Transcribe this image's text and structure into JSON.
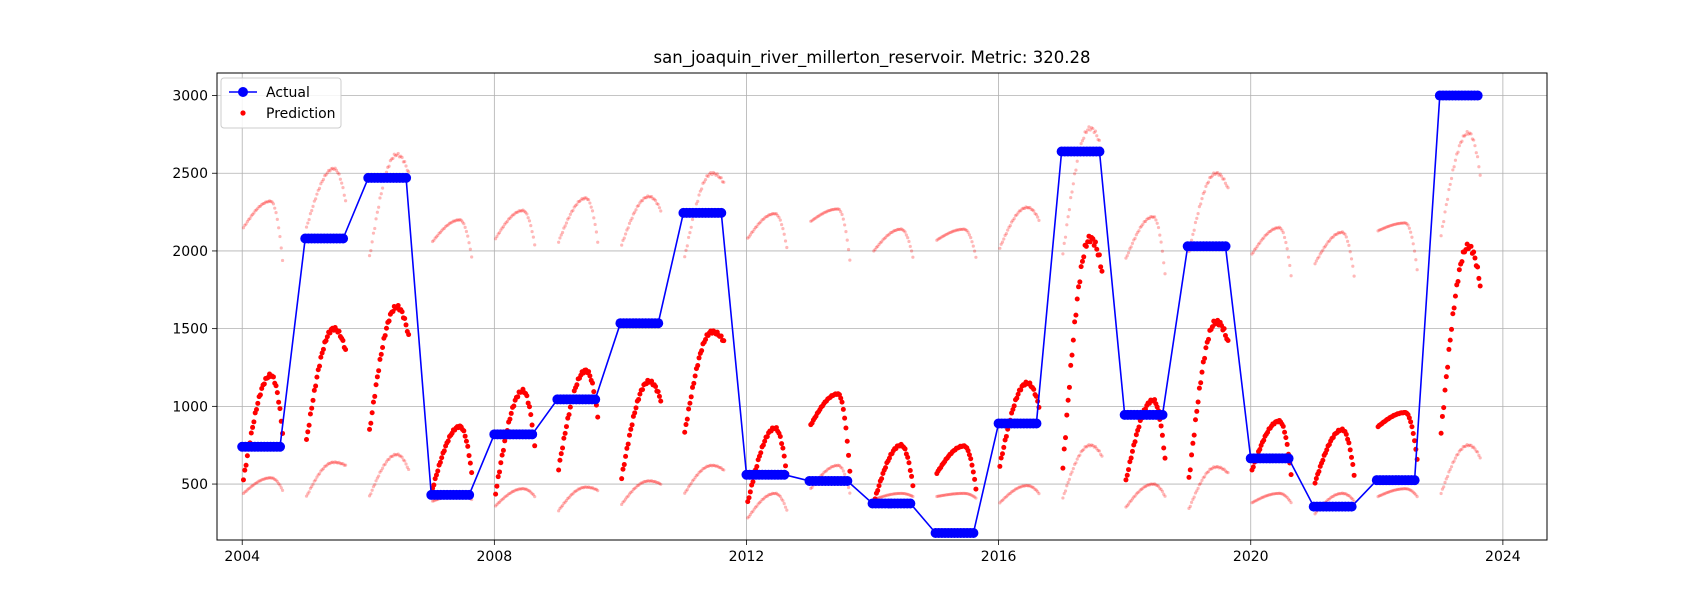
{
  "chart_data": {
    "type": "line+scatter",
    "title": "san_joaquin_river_millerton_reservoir. Metric: 320.28",
    "xlabel": "",
    "ylabel": "",
    "xlim": [
      2003.6,
      2024.7
    ],
    "ylim": [
      140,
      3145
    ],
    "x_ticks": [
      2004,
      2008,
      2012,
      2016,
      2020,
      2024
    ],
    "x_tick_labels": [
      "2004",
      "2008",
      "2012",
      "2016",
      "2020",
      "2024"
    ],
    "y_ticks": [
      500,
      1000,
      1500,
      2000,
      2500,
      3000
    ],
    "y_tick_labels": [
      "500",
      "1000",
      "1500",
      "2000",
      "2500",
      "3000"
    ],
    "grid": true,
    "legend_position": "top-left",
    "colors": {
      "actual": "#0000ff",
      "prediction": "#ff0000"
    },
    "series": [
      {
        "name": "Actual",
        "kind": "line-with-markers",
        "segments": [
          {
            "start": 2004.0,
            "end": 2004.6,
            "value": 740
          },
          {
            "start": 2005.0,
            "end": 2005.6,
            "value": 2080
          },
          {
            "start": 2006.0,
            "end": 2006.6,
            "value": 2470
          },
          {
            "start": 2007.0,
            "end": 2007.6,
            "value": 430
          },
          {
            "start": 2008.0,
            "end": 2008.6,
            "value": 820
          },
          {
            "start": 2009.0,
            "end": 2009.6,
            "value": 1045
          },
          {
            "start": 2010.0,
            "end": 2010.6,
            "value": 1535
          },
          {
            "start": 2011.0,
            "end": 2011.6,
            "value": 2245
          },
          {
            "start": 2012.0,
            "end": 2012.6,
            "value": 560
          },
          {
            "start": 2013.0,
            "end": 2013.6,
            "value": 520
          },
          {
            "start": 2014.0,
            "end": 2014.6,
            "value": 375
          },
          {
            "start": 2015.0,
            "end": 2015.6,
            "value": 185
          },
          {
            "start": 2016.0,
            "end": 2016.6,
            "value": 890
          },
          {
            "start": 2017.0,
            "end": 2017.6,
            "value": 2640
          },
          {
            "start": 2018.0,
            "end": 2018.6,
            "value": 945
          },
          {
            "start": 2019.0,
            "end": 2019.6,
            "value": 2030
          },
          {
            "start": 2020.0,
            "end": 2020.6,
            "value": 665
          },
          {
            "start": 2021.0,
            "end": 2021.6,
            "value": 355
          },
          {
            "start": 2022.0,
            "end": 2022.6,
            "value": 525
          },
          {
            "start": 2023.0,
            "end": 2023.6,
            "value": 3000
          }
        ]
      },
      {
        "name": "Prediction",
        "kind": "scatter",
        "season_peaks": [
          {
            "year": 2004,
            "start": 530,
            "peak": 1200,
            "end": 830
          },
          {
            "year": 2005,
            "start": 780,
            "peak": 1500,
            "end": 1360
          },
          {
            "year": 2006,
            "start": 840,
            "peak": 1640,
            "end": 1450
          },
          {
            "year": 2007,
            "start": 470,
            "peak": 870,
            "end": 570
          },
          {
            "year": 2008,
            "start": 440,
            "peak": 1100,
            "end": 750
          },
          {
            "year": 2009,
            "start": 600,
            "peak": 1230,
            "end": 940
          },
          {
            "year": 2010,
            "start": 540,
            "peak": 1160,
            "end": 1040
          },
          {
            "year": 2011,
            "start": 830,
            "peak": 1480,
            "end": 1420
          },
          {
            "year": 2012,
            "start": 380,
            "peak": 860,
            "end": 560
          },
          {
            "year": 2013,
            "start": 880,
            "peak": 1080,
            "end": 580
          },
          {
            "year": 2014,
            "start": 380,
            "peak": 750,
            "end": 490
          },
          {
            "year": 2015,
            "start": 570,
            "peak": 745,
            "end": 470
          },
          {
            "year": 2016,
            "start": 620,
            "peak": 1150,
            "end": 1000
          },
          {
            "year": 2017,
            "start": 600,
            "peak": 2080,
            "end": 1870
          },
          {
            "year": 2018,
            "start": 520,
            "peak": 1040,
            "end": 660
          },
          {
            "year": 2019,
            "start": 530,
            "peak": 1545,
            "end": 1410
          },
          {
            "year": 2020,
            "start": 590,
            "peak": 905,
            "end": 560
          },
          {
            "year": 2021,
            "start": 510,
            "peak": 850,
            "end": 560
          },
          {
            "year": 2022,
            "start": 870,
            "peak": 960,
            "end": 660
          },
          {
            "year": 2023,
            "start": 830,
            "peak": 2030,
            "end": 1780
          }
        ],
        "upper_band_peaks": [
          {
            "year": 2004,
            "start": 2150,
            "peak": 2320,
            "end": 1940
          },
          {
            "year": 2005,
            "start": 2150,
            "peak": 2530,
            "end": 2320
          },
          {
            "year": 2006,
            "start": 1960,
            "peak": 2620,
            "end": 2500
          },
          {
            "year": 2007,
            "start": 2060,
            "peak": 2200,
            "end": 1960
          },
          {
            "year": 2008,
            "start": 2080,
            "peak": 2260,
            "end": 2040
          },
          {
            "year": 2009,
            "start": 2060,
            "peak": 2340,
            "end": 2060
          },
          {
            "year": 2010,
            "start": 2040,
            "peak": 2350,
            "end": 2260
          },
          {
            "year": 2011,
            "start": 1960,
            "peak": 2500,
            "end": 2440
          },
          {
            "year": 2012,
            "start": 2080,
            "peak": 2240,
            "end": 2020
          },
          {
            "year": 2013,
            "start": 2190,
            "peak": 2270,
            "end": 1940
          },
          {
            "year": 2014,
            "start": 2000,
            "peak": 2140,
            "end": 1960
          },
          {
            "year": 2015,
            "start": 2070,
            "peak": 2140,
            "end": 1960
          },
          {
            "year": 2016,
            "start": 2020,
            "peak": 2280,
            "end": 2200
          },
          {
            "year": 2017,
            "start": 1980,
            "peak": 2790,
            "end": 2640
          },
          {
            "year": 2018,
            "start": 1950,
            "peak": 2220,
            "end": 1850
          },
          {
            "year": 2019,
            "start": 1990,
            "peak": 2500,
            "end": 2400
          },
          {
            "year": 2020,
            "start": 1980,
            "peak": 2150,
            "end": 1840
          },
          {
            "year": 2021,
            "start": 1920,
            "peak": 2120,
            "end": 1840
          },
          {
            "year": 2022,
            "start": 2130,
            "peak": 2180,
            "end": 1880
          },
          {
            "year": 2023,
            "start": 2100,
            "peak": 2760,
            "end": 2490
          }
        ],
        "lower_band_peaks": [
          {
            "year": 2004,
            "start": 440,
            "peak": 540,
            "end": 460
          },
          {
            "year": 2005,
            "start": 420,
            "peak": 640,
            "end": 620
          },
          {
            "year": 2006,
            "start": 420,
            "peak": 690,
            "end": 590
          },
          {
            "year": 2007,
            "start": 390,
            "peak": 430,
            "end": 400
          },
          {
            "year": 2008,
            "start": 360,
            "peak": 470,
            "end": 420
          },
          {
            "year": 2009,
            "start": 330,
            "peak": 480,
            "end": 460
          },
          {
            "year": 2010,
            "start": 370,
            "peak": 520,
            "end": 500
          },
          {
            "year": 2011,
            "start": 440,
            "peak": 620,
            "end": 590
          },
          {
            "year": 2012,
            "start": 280,
            "peak": 440,
            "end": 330
          },
          {
            "year": 2013,
            "start": 470,
            "peak": 620,
            "end": 440
          },
          {
            "year": 2014,
            "start": 400,
            "peak": 440,
            "end": 420
          },
          {
            "year": 2015,
            "start": 420,
            "peak": 440,
            "end": 410
          },
          {
            "year": 2016,
            "start": 380,
            "peak": 490,
            "end": 440
          },
          {
            "year": 2017,
            "start": 410,
            "peak": 750,
            "end": 680
          },
          {
            "year": 2018,
            "start": 350,
            "peak": 500,
            "end": 420
          },
          {
            "year": 2019,
            "start": 340,
            "peak": 610,
            "end": 570
          },
          {
            "year": 2020,
            "start": 380,
            "peak": 440,
            "end": 380
          },
          {
            "year": 2021,
            "start": 310,
            "peak": 440,
            "end": 390
          },
          {
            "year": 2022,
            "start": 420,
            "peak": 470,
            "end": 420
          },
          {
            "year": 2023,
            "start": 440,
            "peak": 750,
            "end": 670
          }
        ]
      }
    ]
  }
}
